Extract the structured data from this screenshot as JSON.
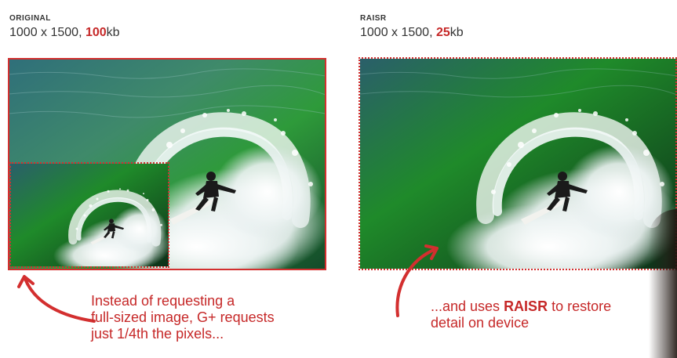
{
  "left": {
    "label": "ORIGINAL",
    "dims_prefix": "1000 x 1500, ",
    "size_value": "100",
    "size_unit": "kb"
  },
  "right": {
    "label": "RAISR",
    "dims_prefix": "1000 x 1500, ",
    "size_value": "25",
    "size_unit": "kb"
  },
  "captions": {
    "left_line1": "Instead of requesting a",
    "left_line2": "full-sized image, G+ requests",
    "left_line3": "just 1/4th the pixels...",
    "right_line1_prefix": "...and uses ",
    "right_line1_bold": "RAISR",
    "right_line1_suffix": " to restore",
    "right_line2": "detail on device"
  },
  "colors": {
    "accent": "#d32f2f",
    "caption": "#c62828",
    "text": "#333333"
  },
  "icons": {
    "left_arrow": "curved-arrow-icon",
    "right_arrow": "curved-arrow-icon"
  }
}
